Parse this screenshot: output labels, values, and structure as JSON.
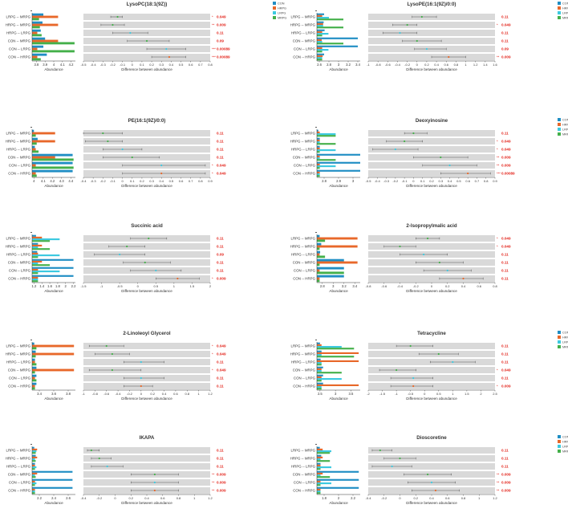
{
  "colors": {
    "CON": "#1f8ec4",
    "HRPG": "#e8682a",
    "LRPG": "#3cc9e0",
    "MRPG": "#44b04a",
    "band": "#d9d9d9",
    "sig": "#e3241b",
    "ci": "#555555"
  },
  "legend": [
    "CON",
    "HRPG",
    "LRPG",
    "MRPG"
  ],
  "comparisons": [
    "LRPG -- MRPG",
    "HRPG -- MRPG",
    "HRPG -- LRPG",
    "CON -- MRPG",
    "CON -- LRPG",
    "CON -- HRPG"
  ],
  "xlabel_left": "Abundance",
  "xlabel_right": "Difference between abundance",
  "chart_data": [
    {
      "type": "bar",
      "title": "LysoPC(18:1(9Z))",
      "legend": true,
      "abund_ticks": [
        "3.8",
        "3.9",
        "4",
        "4.1",
        "4.2"
      ],
      "abund_lim": [
        3.75,
        4.25
      ],
      "abund": [
        [
          3.88,
          3.87,
          3.85,
          3.9,
          3.88,
          3.92
        ],
        [
          4.05,
          4.05,
          3.81,
          4.05,
          3.81,
          3.81
        ],
        [
          3.83,
          3.84,
          3.86,
          4.24,
          4.24,
          3.85
        ]
      ],
      "diff_ticks": [
        "-0.5",
        "-0.4",
        "-0.3",
        "-0.2",
        "-0.1",
        "0",
        "0.1",
        "0.2",
        "0.3",
        "0.4",
        "0.5",
        "0.6",
        "0.7",
        "0.8"
      ],
      "diff_lim": [
        -0.5,
        0.8
      ],
      "diff": [
        [
          -0.15,
          -0.22,
          -0.1
        ],
        [
          -0.2,
          -0.32,
          -0.08
        ],
        [
          -0.02,
          -0.2,
          0.16
        ],
        [
          0.15,
          -0.05,
          0.38
        ],
        [
          0.35,
          0.15,
          0.55
        ],
        [
          0.38,
          0.2,
          0.55
        ]
      ],
      "dot_color": [
        "MRPG",
        "MRPG",
        "LRPG",
        "MRPG",
        "LRPG",
        "HRPG"
      ],
      "stars": [
        "*",
        "**",
        "",
        "",
        "***",
        "***"
      ],
      "pvals": [
        "0.049",
        "0.009",
        "0.11",
        "0.09",
        "0.00089",
        "0.00089"
      ]
    },
    {
      "type": "bar",
      "title": "LysoPE(16:1(9Z)/0:0)",
      "legend": true,
      "abund_ticks": [
        "2.6",
        "2.8",
        "3",
        "3.2",
        "3.4"
      ],
      "abund_lim": [
        2.55,
        3.45
      ],
      "abund": [
        [
          2.7,
          2.69,
          2.71,
          3.4,
          3.4,
          2.7
        ],
        [
          2.66,
          2.68,
          2.66,
          2.65,
          2.66,
          2.67
        ],
        [
          2.8,
          2.68,
          2.79,
          2.66,
          2.79,
          2.66
        ],
        [
          3.1,
          3.1,
          2.66,
          3.1,
          2.66,
          2.66
        ]
      ],
      "diff_ticks": [
        "-1",
        "-0.8",
        "-0.6",
        "-0.4",
        "-0.2",
        "0",
        "0.2",
        "0.4",
        "0.6",
        "0.8",
        "1",
        "1.2",
        "1.4",
        "1.6"
      ],
      "diff_lim": [
        -1,
        1.6
      ],
      "diff": [
        [
          0.1,
          -0.1,
          0.4
        ],
        [
          -0.2,
          -0.5,
          0.0
        ],
        [
          -0.35,
          -0.7,
          0.0
        ],
        [
          0.0,
          -0.3,
          0.5
        ],
        [
          0.2,
          -0.05,
          0.6
        ],
        [
          0.65,
          0.3,
          1.0
        ]
      ],
      "dot_color": [
        "MRPG",
        "MRPG",
        "LRPG",
        "MRPG",
        "LRPG",
        "HRPG"
      ],
      "stars": [
        "",
        "*",
        "",
        "",
        "",
        "**"
      ],
      "pvals": [
        "0.11",
        "0.049",
        "0.11",
        "0.11",
        "0.09",
        "0.009"
      ]
    },
    {
      "type": "bar",
      "title": "PE(16:1(9Z)/0:0)",
      "legend": false,
      "abund_ticks": [
        "4",
        "4.1",
        "4.2",
        "4.3",
        "4.4"
      ],
      "abund_lim": [
        3.98,
        4.45
      ],
      "abund": [
        [
          4.0,
          4.04,
          4.01,
          4.42,
          4.42,
          4.42
        ],
        [
          4.23,
          4.23,
          4.02,
          4.23,
          4.02,
          4.02
        ],
        [
          4.02,
          4.03,
          4.05,
          4.43,
          4.43,
          4.03
        ]
      ],
      "diff_ticks": [
        "-0.4",
        "-0.3",
        "-0.2",
        "-0.1",
        "0",
        "0.1",
        "0.2",
        "0.3",
        "0.4",
        "0.5",
        "0.6",
        "0.7",
        "0.8",
        "0.9"
      ],
      "diff_lim": [
        -0.4,
        0.9
      ],
      "diff": [
        [
          -0.2,
          -0.4,
          0.0
        ],
        [
          -0.15,
          -0.38,
          0.0
        ],
        [
          0.0,
          -0.2,
          0.2
        ],
        [
          0.1,
          -0.2,
          0.38
        ],
        [
          0.4,
          0.0,
          0.85
        ],
        [
          0.4,
          0.0,
          0.85
        ]
      ],
      "dot_color": [
        "MRPG",
        "MRPG",
        "LRPG",
        "MRPG",
        "LRPG",
        "HRPG"
      ],
      "stars": [
        "",
        "",
        "",
        "",
        "*",
        "*"
      ],
      "pvals": [
        "0.11",
        "0.11",
        "0.11",
        "0.11",
        "0.049",
        "0.049"
      ]
    },
    {
      "type": "bar",
      "title": "Deoxyinosine",
      "legend": true,
      "abund_ticks": [
        "2.8",
        "2.9",
        "3"
      ],
      "abund_lim": [
        2.75,
        3.05
      ],
      "abund": [
        [
          2.76,
          2.77,
          2.77,
          3.05,
          3.05,
          3.05
        ],
        [
          2.77,
          2.77,
          2.77,
          2.77,
          2.77,
          2.77
        ],
        [
          2.88,
          2.77,
          2.88,
          2.77,
          2.88,
          2.77
        ],
        [
          2.88,
          2.88,
          2.77,
          2.88,
          2.77,
          2.77
        ]
      ],
      "diff_ticks": [
        "-0.5",
        "-0.4",
        "-0.3",
        "-0.2",
        "-0.1",
        "0",
        "0.1",
        "0.2",
        "0.3",
        "0.4",
        "0.5",
        "0.6",
        "0.7",
        "0.8",
        "0.9"
      ],
      "diff_lim": [
        -0.5,
        0.9
      ],
      "diff": [
        [
          0.0,
          -0.1,
          0.15
        ],
        [
          -0.1,
          -0.3,
          0.1
        ],
        [
          -0.2,
          -0.45,
          0.05
        ],
        [
          0.3,
          0.0,
          0.6
        ],
        [
          0.4,
          0.1,
          0.7
        ],
        [
          0.6,
          0.3,
          0.85
        ]
      ],
      "dot_color": [
        "MRPG",
        "MRPG",
        "LRPG",
        "MRPG",
        "LRPG",
        "HRPG"
      ],
      "stars": [
        "",
        "*",
        "*",
        "**",
        "**",
        "***"
      ],
      "pvals": [
        "0.11",
        "0.049",
        "0.049",
        "0.009",
        "0.009",
        "0.00089"
      ]
    },
    {
      "type": "bar",
      "title": "Succinic acid",
      "legend": false,
      "abund_ticks": [
        "1.2",
        "1.4",
        "1.6",
        "1.8",
        "2",
        "2.2"
      ],
      "abund_lim": [
        1.15,
        2.25
      ],
      "abund": [
        [
          1.25,
          1.3,
          1.28,
          2.2,
          2.2,
          2.2
        ],
        [
          1.4,
          1.4,
          1.3,
          1.4,
          1.3,
          1.3
        ],
        [
          1.85,
          1.3,
          1.85,
          1.3,
          1.85,
          1.3
        ],
        [
          1.6,
          1.6,
          1.3,
          1.6,
          1.3,
          1.3
        ]
      ],
      "diff_ticks": [
        "-1.5",
        "-1",
        "-0.5",
        "0",
        "0.5",
        "1",
        "1.5",
        "2"
      ],
      "diff_lim": [
        -1.5,
        2
      ],
      "diff": [
        [
          0.3,
          -0.2,
          0.8
        ],
        [
          -0.3,
          -0.8,
          0.2
        ],
        [
          -0.5,
          -1.2,
          0.2
        ],
        [
          0.2,
          -0.4,
          0.9
        ],
        [
          0.5,
          -0.2,
          1.2
        ],
        [
          1.1,
          0.5,
          1.7
        ]
      ],
      "dot_color": [
        "MRPG",
        "MRPG",
        "LRPG",
        "MRPG",
        "LRPG",
        "HRPG"
      ],
      "stars": [
        "",
        "",
        "",
        "",
        "",
        "*"
      ],
      "pvals": [
        "0.11",
        "0.11",
        "0.09",
        "0.11",
        "0.11",
        "0.009"
      ]
    },
    {
      "type": "bar",
      "title": "2-Isopropylmalic acid",
      "legend": false,
      "abund_ticks": [
        "2.8",
        "3",
        "3.2",
        "3.4"
      ],
      "abund_lim": [
        2.7,
        3.5
      ],
      "abund": [
        [
          2.75,
          2.78,
          2.76,
          3.2,
          3.2,
          3.2
        ],
        [
          3.45,
          3.45,
          2.75,
          3.45,
          2.75,
          2.75
        ],
        [
          2.85,
          2.75,
          2.85,
          2.75,
          3.2,
          2.75
        ]
      ],
      "diff_ticks": [
        "-0.8",
        "-0.6",
        "-0.4",
        "-0.2",
        "0",
        "0.2",
        "0.4",
        "0.6",
        "0.8"
      ],
      "diff_lim": [
        -0.8,
        0.8
      ],
      "diff": [
        [
          -0.05,
          -0.2,
          0.1
        ],
        [
          -0.4,
          -0.6,
          -0.2
        ],
        [
          -0.1,
          -0.4,
          0.2
        ],
        [
          0.1,
          -0.2,
          0.4
        ],
        [
          0.2,
          -0.1,
          0.5
        ],
        [
          0.4,
          0.1,
          0.65
        ]
      ],
      "dot_color": [
        "MRPG",
        "MRPG",
        "LRPG",
        "MRPG",
        "LRPG",
        "HRPG"
      ],
      "stars": [
        "*",
        "*",
        "",
        "",
        "",
        ""
      ],
      "pvals": [
        "0.049",
        "0.049",
        "0.11",
        "0.11",
        "0.11",
        "0.11"
      ]
    },
    {
      "type": "bar",
      "title": "2-Linoleoyl Glycerol",
      "legend": false,
      "abund_ticks": [
        "3.4",
        "3.6",
        "3.8"
      ],
      "abund_lim": [
        3.3,
        3.9
      ],
      "abund": [
        [
          3.33,
          3.35,
          3.34,
          3.36,
          3.36,
          3.36
        ],
        [
          3.88,
          3.88,
          3.34,
          3.88,
          3.34,
          3.34
        ],
        [
          3.36,
          3.35,
          3.36,
          3.34,
          3.36,
          3.34
        ]
      ],
      "diff_ticks": [
        "-1",
        "-0.8",
        "-0.6",
        "-0.4",
        "-0.2",
        "0",
        "0.2",
        "0.4",
        "0.6",
        "0.8",
        "1",
        "1.2"
      ],
      "diff_lim": [
        -1,
        1.2
      ],
      "diff": [
        [
          -0.6,
          -0.9,
          -0.3
        ],
        [
          -0.5,
          -0.8,
          -0.2
        ],
        [
          0.0,
          -0.3,
          0.4
        ],
        [
          -0.5,
          -0.9,
          0.0
        ],
        [
          0.0,
          -0.3,
          0.4
        ],
        [
          0.0,
          -0.3,
          0.2
        ]
      ],
      "dot_color": [
        "MRPG",
        "MRPG",
        "LRPG",
        "MRPG",
        "LRPG",
        "HRPG"
      ],
      "stars": [
        "*",
        "*",
        "",
        "*",
        "",
        ""
      ],
      "pvals": [
        "0.049",
        "0.049",
        "0.11",
        "0.049",
        "0.11",
        "0.11"
      ]
    },
    {
      "type": "bar",
      "title": "Tetracycline",
      "legend": true,
      "abund_ticks": [
        "2.5",
        "3",
        "3.5"
      ],
      "abund_lim": [
        2.4,
        3.8
      ],
      "abund": [
        [
          2.5,
          2.55,
          2.52,
          2.6,
          2.6,
          2.6
        ],
        [
          2.55,
          3.75,
          3.75,
          2.55,
          2.55,
          3.75
        ],
        [
          3.2,
          2.55,
          2.55,
          2.55,
          3.2,
          2.55
        ],
        [
          3.6,
          3.6,
          2.55,
          3.2,
          2.55,
          2.55
        ]
      ],
      "diff_ticks": [
        "-2",
        "-1.5",
        "-1",
        "-0.5",
        "0",
        "0.5",
        "1",
        "1.5",
        "2",
        "2.5"
      ],
      "diff_lim": [
        -2,
        2.5
      ],
      "diff": [
        [
          -0.5,
          -1.0,
          0.3
        ],
        [
          0.5,
          -0.2,
          1.2
        ],
        [
          1.0,
          0.2,
          1.8
        ],
        [
          -1.0,
          -1.6,
          -0.3
        ],
        [
          -0.4,
          -1.2,
          0.3
        ],
        [
          -0.4,
          -1.2,
          0.3
        ]
      ],
      "dot_color": [
        "MRPG",
        "MRPG",
        "LRPG",
        "MRPG",
        "LRPG",
        "HRPG"
      ],
      "stars": [
        "",
        "",
        "",
        "*",
        "",
        "*"
      ],
      "pvals": [
        "0.11",
        "0.11",
        "0.11",
        "0.049",
        "0.11",
        "0.009"
      ]
    },
    {
      "type": "bar",
      "title": "IKAPA",
      "legend": false,
      "abund_ticks": [
        "2.2",
        "2.4",
        "2.6"
      ],
      "abund_lim": [
        2.1,
        2.7
      ],
      "abund": [
        [
          2.13,
          2.15,
          2.14,
          2.66,
          2.66,
          2.66
        ],
        [
          2.17,
          2.17,
          2.14,
          2.17,
          2.14,
          2.14
        ],
        [
          2.16,
          2.14,
          2.16,
          2.14,
          2.16,
          2.14
        ],
        [
          2.15,
          2.15,
          2.14,
          2.15,
          2.14,
          2.14
        ]
      ],
      "diff_ticks": [
        "-0.4",
        "-0.2",
        "0",
        "0.2",
        "0.4",
        "0.6",
        "0.8",
        "1",
        "1.2"
      ],
      "diff_lim": [
        -0.4,
        1.2
      ],
      "diff": [
        [
          -0.3,
          -0.35,
          -0.2
        ],
        [
          -0.2,
          -0.3,
          -0.05
        ],
        [
          -0.1,
          -0.3,
          0.1
        ],
        [
          0.5,
          0.2,
          0.8
        ],
        [
          0.5,
          0.2,
          0.8
        ],
        [
          0.5,
          0.2,
          0.8
        ]
      ],
      "dot_color": [
        "MRPG",
        "MRPG",
        "LRPG",
        "MRPG",
        "LRPG",
        "HRPG"
      ],
      "stars": [
        "",
        "",
        "",
        "**",
        "**",
        "**"
      ],
      "pvals": [
        "0.11",
        "0.11",
        "0.11",
        "0.009",
        "0.009",
        "0.009"
      ]
    },
    {
      "type": "bar",
      "title": "Dioscoretine",
      "legend": true,
      "abund_ticks": [
        "1.8",
        "2",
        "2.2"
      ],
      "abund_lim": [
        1.7,
        2.3
      ],
      "abund": [
        [
          1.74,
          1.76,
          1.75,
          2.28,
          2.28,
          2.28
        ],
        [
          1.78,
          1.78,
          1.75,
          1.78,
          1.75,
          1.75
        ],
        [
          1.9,
          1.75,
          1.9,
          1.75,
          1.9,
          1.75
        ],
        [
          1.88,
          1.88,
          1.75,
          1.88,
          1.75,
          1.75
        ]
      ],
      "diff_ticks": [
        "-0.4",
        "-0.2",
        "0",
        "0.2",
        "0.4",
        "0.6",
        "0.8",
        "1",
        "1.2"
      ],
      "diff_lim": [
        -0.4,
        1.2
      ],
      "diff": [
        [
          -0.25,
          -0.35,
          -0.1
        ],
        [
          0.0,
          -0.2,
          0.2
        ],
        [
          -0.1,
          -0.35,
          0.15
        ],
        [
          0.35,
          0.05,
          0.65
        ],
        [
          0.4,
          0.1,
          0.7
        ],
        [
          0.45,
          0.15,
          0.75
        ]
      ],
      "dot_color": [
        "MRPG",
        "MRPG",
        "LRPG",
        "MRPG",
        "LRPG",
        "HRPG"
      ],
      "stars": [
        "",
        "",
        "",
        "**",
        "**",
        "**"
      ],
      "pvals": [
        "0.11",
        "0.11",
        "0.11",
        "0.009",
        "0.009",
        "0.009"
      ]
    }
  ]
}
